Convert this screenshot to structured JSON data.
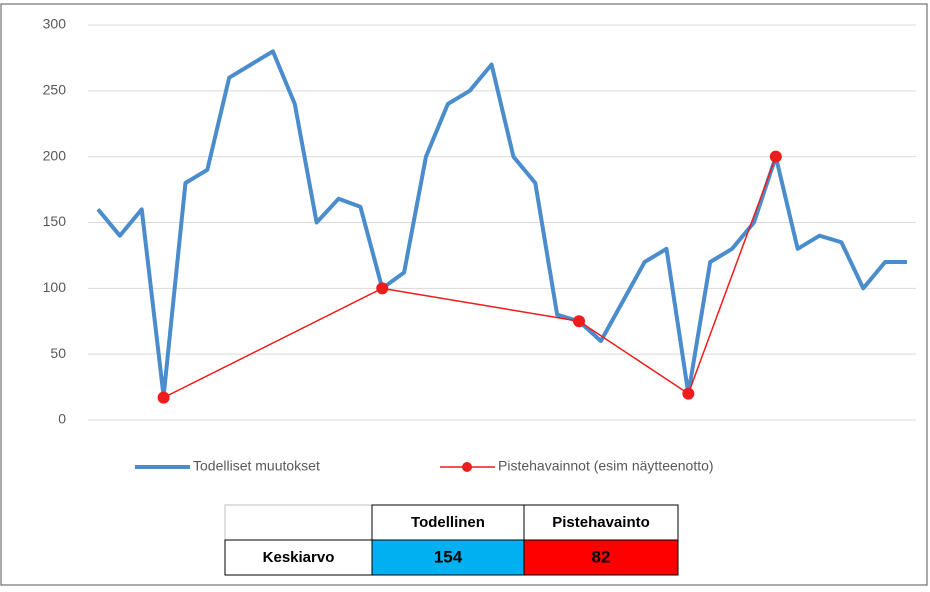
{
  "chart_data": {
    "type": "line",
    "categories": [
      null,
      null,
      null,
      null,
      null,
      null,
      null,
      null,
      null,
      null,
      null,
      null,
      null,
      null,
      null,
      null,
      null,
      null,
      null,
      null,
      null,
      null,
      null,
      null,
      null,
      null,
      null,
      null,
      null,
      null,
      null,
      null,
      null,
      null,
      null,
      null,
      null,
      null
    ],
    "series": [
      {
        "name": "Todelliset muutokset",
        "color": "#4a8ccc",
        "values": [
          160,
          140,
          160,
          18,
          180,
          190,
          260,
          270,
          280,
          240,
          150,
          168,
          162,
          100,
          112,
          200,
          240,
          250,
          270,
          200,
          180,
          80,
          75,
          60,
          90,
          120,
          130,
          20,
          120,
          130,
          150,
          200,
          130,
          140,
          135,
          100,
          120,
          120
        ]
      },
      {
        "name": "Pistehavainnot (esim näytteenotto)",
        "color": "#ee1c1c",
        "x": [
          3,
          13,
          22,
          27,
          31
        ],
        "values": [
          17,
          100,
          75,
          20,
          200
        ]
      }
    ],
    "ylim": [
      0,
      300
    ],
    "yticks": [
      0,
      50,
      100,
      150,
      200,
      250,
      300
    ],
    "grid": true,
    "legend": "bottom"
  },
  "table": {
    "header": [
      "Todellinen",
      "Pistehavainto"
    ],
    "rows": [
      {
        "label": "Keskiarvo",
        "values": [
          154,
          82
        ],
        "colors": [
          "#00b0f0",
          "#ff0000"
        ]
      }
    ]
  }
}
